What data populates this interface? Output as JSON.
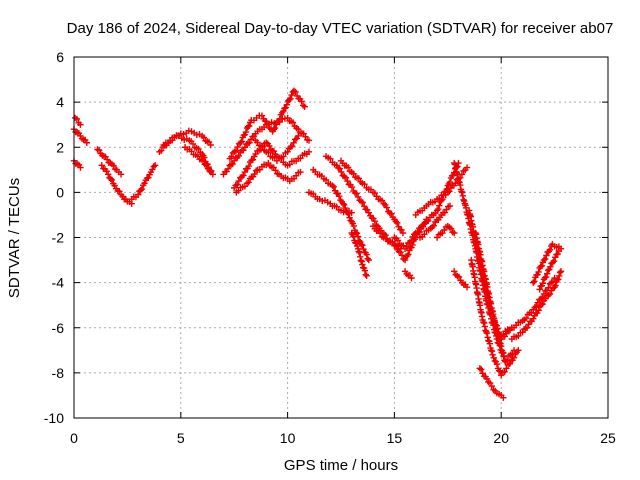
{
  "chart_data": {
    "type": "scatter",
    "title": "Day 186 of 2024, Sidereal Day-to-day VTEC variation (SDTVAR) for receiver ab07",
    "xlabel": "GPS time / hours",
    "ylabel": "SDTVAR / TECUs",
    "xlim": [
      0,
      25
    ],
    "ylim": [
      -10,
      6
    ],
    "xticks": [
      "0",
      "5",
      "10",
      "15",
      "20",
      "25"
    ],
    "yticks": [
      "-10",
      "-8",
      "-6",
      "-4",
      "-2",
      "0",
      "2",
      "4",
      "6"
    ],
    "grid": true,
    "marker": "+",
    "color": "#ee0000",
    "series": [
      {
        "name": "s1",
        "x": [
          0.0,
          0.3,
          0.6
        ],
        "y": [
          2.8,
          2.5,
          2.2
        ]
      },
      {
        "name": "s2",
        "x": [
          0.05,
          0.3
        ],
        "y": [
          3.3,
          3.0
        ]
      },
      {
        "name": "s3",
        "x": [
          0.0,
          0.3
        ],
        "y": [
          1.4,
          1.1
        ]
      },
      {
        "name": "s4",
        "x": [
          1.1,
          1.4,
          1.7,
          2.0,
          2.2
        ],
        "y": [
          1.9,
          1.6,
          1.3,
          1.0,
          0.8
        ]
      },
      {
        "name": "s5",
        "x": [
          1.3,
          1.6,
          1.9,
          2.2,
          2.5,
          2.7
        ],
        "y": [
          1.2,
          0.8,
          0.3,
          -0.1,
          -0.4,
          -0.5
        ]
      },
      {
        "name": "s6",
        "x": [
          2.7,
          3.0,
          3.3,
          3.6,
          3.8
        ],
        "y": [
          -0.3,
          -0.1,
          0.4,
          0.9,
          1.2
        ]
      },
      {
        "name": "s7",
        "x": [
          4.0,
          4.5,
          5.0,
          5.5,
          6.0,
          6.4
        ],
        "y": [
          1.8,
          2.3,
          2.6,
          2.7,
          2.5,
          2.1
        ]
      },
      {
        "name": "s8",
        "x": [
          4.2,
          4.8,
          5.4,
          6.0,
          6.4
        ],
        "y": [
          2.1,
          2.5,
          2.3,
          1.7,
          0.9
        ]
      },
      {
        "name": "s9",
        "x": [
          5.2,
          5.8,
          6.2,
          6.5
        ],
        "y": [
          2.0,
          1.6,
          1.2,
          0.8
        ]
      },
      {
        "name": "s10",
        "x": [
          7.0,
          7.5,
          8.0,
          8.5,
          9.0,
          9.5,
          10.0,
          10.5,
          11.0
        ],
        "y": [
          0.8,
          1.4,
          2.0,
          2.6,
          3.0,
          3.1,
          3.3,
          2.8,
          2.3
        ]
      },
      {
        "name": "s11",
        "x": [
          7.3,
          7.8,
          8.3,
          8.8,
          9.3,
          9.8,
          10.3,
          10.8
        ],
        "y": [
          1.5,
          2.2,
          3.2,
          3.4,
          2.7,
          3.6,
          4.5,
          3.8
        ]
      },
      {
        "name": "s12",
        "x": [
          7.5,
          8.0,
          8.5,
          9.0,
          9.5,
          10.0,
          10.5,
          11.0
        ],
        "y": [
          0.2,
          0.9,
          1.7,
          2.2,
          1.6,
          1.2,
          1.5,
          1.8
        ]
      },
      {
        "name": "s13",
        "x": [
          7.6,
          8.1,
          8.6,
          9.1,
          9.6,
          10.1,
          10.6
        ],
        "y": [
          0.0,
          0.4,
          1.0,
          1.3,
          0.8,
          0.5,
          0.9
        ]
      },
      {
        "name": "s14",
        "x": [
          8.5,
          9.0,
          9.5,
          10.0,
          10.5
        ],
        "y": [
          2.3,
          1.8,
          1.4,
          1.8,
          2.5
        ]
      },
      {
        "name": "s15",
        "x": [
          11.0,
          11.5,
          12.0,
          12.5,
          13.0
        ],
        "y": [
          0.0,
          -0.3,
          -0.5,
          -0.8,
          -0.9
        ]
      },
      {
        "name": "s16",
        "x": [
          11.2,
          11.7,
          12.1,
          12.6,
          13.0,
          13.4,
          13.8
        ],
        "y": [
          1.0,
          0.6,
          0.3,
          -0.5,
          -1.3,
          -2.2,
          -3.0
        ]
      },
      {
        "name": "s17",
        "x": [
          11.8,
          12.3,
          12.8,
          13.3,
          13.8,
          14.3,
          14.8,
          15.3
        ],
        "y": [
          1.6,
          1.2,
          0.5,
          -0.2,
          -0.9,
          -1.6,
          -2.2,
          -2.5
        ]
      },
      {
        "name": "s18",
        "x": [
          12.5,
          13.0,
          13.5,
          14.0,
          14.5,
          15.0,
          15.4
        ],
        "y": [
          1.4,
          0.9,
          0.4,
          0.0,
          -0.5,
          -1.2,
          -1.8
        ]
      },
      {
        "name": "s19",
        "x": [
          13.0,
          13.3,
          13.5,
          13.7
        ],
        "y": [
          -1.8,
          -2.5,
          -3.2,
          -3.7
        ]
      },
      {
        "name": "s20",
        "x": [
          14.0,
          14.5,
          15.0,
          15.5,
          16.0,
          16.5
        ],
        "y": [
          -1.5,
          -2.0,
          -2.3,
          -3.0,
          -2.0,
          -1.2
        ]
      },
      {
        "name": "s21",
        "x": [
          15.0,
          15.5,
          16.0,
          16.5,
          17.0,
          17.5,
          18.0
        ],
        "y": [
          -2.0,
          -2.5,
          -1.8,
          -1.3,
          -0.8,
          0.3,
          1.3
        ]
      },
      {
        "name": "s22",
        "x": [
          15.5,
          15.8
        ],
        "y": [
          -3.5,
          -3.8
        ]
      },
      {
        "name": "s23",
        "x": [
          16.0,
          16.5,
          17.0,
          17.5,
          18.0,
          18.4
        ],
        "y": [
          -1.0,
          -0.6,
          -0.3,
          0.0,
          0.6,
          1.1
        ]
      },
      {
        "name": "s24",
        "x": [
          16.2,
          16.7,
          17.2,
          17.6
        ],
        "y": [
          -2.0,
          -1.6,
          -1.0,
          -0.6
        ]
      },
      {
        "name": "s25",
        "x": [
          17.0,
          17.5,
          17.8
        ],
        "y": [
          -2.0,
          -1.5,
          -1.8
        ]
      },
      {
        "name": "s26",
        "x": [
          17.8,
          18.1,
          18.4
        ],
        "y": [
          -3.5,
          -3.9,
          -4.2
        ]
      },
      {
        "name": "s27",
        "x": [
          17.8,
          18.3,
          18.8,
          19.3,
          19.8,
          20.2
        ],
        "y": [
          1.3,
          -0.5,
          -2.5,
          -4.8,
          -6.5,
          -7.5
        ]
      },
      {
        "name": "s28",
        "x": [
          18.5,
          19.0,
          19.5,
          20.0,
          20.5
        ],
        "y": [
          -0.8,
          -3.0,
          -5.2,
          -6.5,
          -6.0
        ]
      },
      {
        "name": "s29",
        "x": [
          18.8,
          19.3,
          19.8,
          20.2,
          20.6
        ],
        "y": [
          -1.8,
          -4.0,
          -6.2,
          -7.5,
          -7.0
        ]
      },
      {
        "name": "s30",
        "x": [
          18.6,
          19.1,
          19.6,
          20.0,
          20.4,
          20.8
        ],
        "y": [
          -3.0,
          -5.5,
          -7.2,
          -8.1,
          -7.6,
          -7.0
        ]
      },
      {
        "name": "s31",
        "x": [
          19.0,
          19.4,
          19.8,
          20.1
        ],
        "y": [
          -7.8,
          -8.4,
          -8.9,
          -9.1
        ]
      },
      {
        "name": "s32",
        "x": [
          20.0,
          20.5,
          21.0,
          21.5,
          22.0,
          22.5
        ],
        "y": [
          -6.3,
          -6.0,
          -5.7,
          -5.2,
          -4.5,
          -3.8
        ]
      },
      {
        "name": "s33",
        "x": [
          20.5,
          21.0,
          21.5,
          22.0,
          22.5,
          22.8
        ],
        "y": [
          -6.5,
          -6.2,
          -5.6,
          -4.8,
          -4.2,
          -3.5
        ]
      },
      {
        "name": "s34",
        "x": [
          21.5,
          22.0,
          22.4,
          22.8
        ],
        "y": [
          -4.0,
          -3.0,
          -2.3,
          -2.5
        ]
      },
      {
        "name": "s35",
        "x": [
          21.8,
          22.3,
          22.7
        ],
        "y": [
          -4.3,
          -3.3,
          -2.6
        ]
      }
    ]
  }
}
